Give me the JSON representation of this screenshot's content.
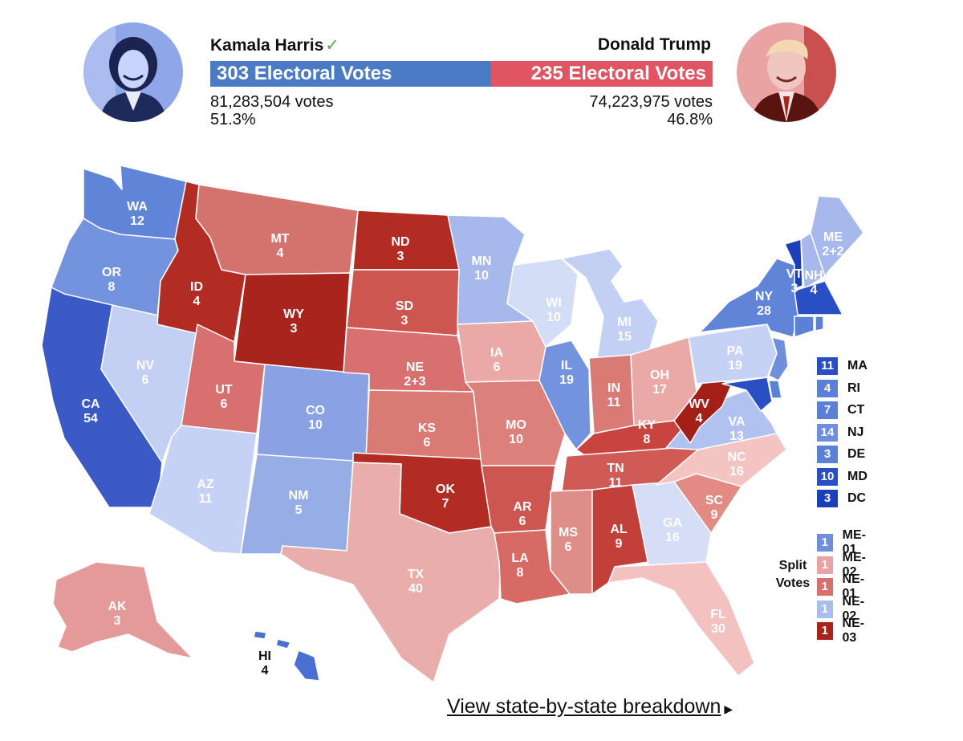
{
  "harris": {
    "name": "Kamala Harris",
    "check": "✓",
    "electoral": "303 Electoral Votes",
    "votes": "81,283,504 votes",
    "percent": "51.3%",
    "color": "#4a7bc4"
  },
  "trump": {
    "name": "Donald Trump",
    "electoral": "235 Electoral Votes",
    "votes": "74,223,975 votes",
    "percent": "46.8%",
    "color": "#e05561"
  },
  "states": [
    {
      "abbr": "WA",
      "ev": "12"
    },
    {
      "abbr": "OR",
      "ev": "8"
    },
    {
      "abbr": "CA",
      "ev": "54"
    },
    {
      "abbr": "NV",
      "ev": "6"
    },
    {
      "abbr": "ID",
      "ev": "4"
    },
    {
      "abbr": "MT",
      "ev": "4"
    },
    {
      "abbr": "WY",
      "ev": "3"
    },
    {
      "abbr": "UT",
      "ev": "6"
    },
    {
      "abbr": "AZ",
      "ev": "11"
    },
    {
      "abbr": "CO",
      "ev": "10"
    },
    {
      "abbr": "NM",
      "ev": "5"
    },
    {
      "abbr": "ND",
      "ev": "3"
    },
    {
      "abbr": "SD",
      "ev": "3"
    },
    {
      "abbr": "NE",
      "ev": "2+3"
    },
    {
      "abbr": "KS",
      "ev": "6"
    },
    {
      "abbr": "OK",
      "ev": "7"
    },
    {
      "abbr": "TX",
      "ev": "40"
    },
    {
      "abbr": "MN",
      "ev": "10"
    },
    {
      "abbr": "IA",
      "ev": "6"
    },
    {
      "abbr": "MO",
      "ev": "10"
    },
    {
      "abbr": "AR",
      "ev": "6"
    },
    {
      "abbr": "LA",
      "ev": "8"
    },
    {
      "abbr": "WI",
      "ev": "10"
    },
    {
      "abbr": "IL",
      "ev": "19"
    },
    {
      "abbr": "MI",
      "ev": "15"
    },
    {
      "abbr": "IN",
      "ev": "11"
    },
    {
      "abbr": "OH",
      "ev": "17"
    },
    {
      "abbr": "KY",
      "ev": "8"
    },
    {
      "abbr": "TN",
      "ev": "11"
    },
    {
      "abbr": "MS",
      "ev": "6"
    },
    {
      "abbr": "AL",
      "ev": "9"
    },
    {
      "abbr": "GA",
      "ev": "16"
    },
    {
      "abbr": "FL",
      "ev": "30"
    },
    {
      "abbr": "SC",
      "ev": "9"
    },
    {
      "abbr": "NC",
      "ev": "16"
    },
    {
      "abbr": "VA",
      "ev": "13"
    },
    {
      "abbr": "WV",
      "ev": "4"
    },
    {
      "abbr": "PA",
      "ev": "19"
    },
    {
      "abbr": "NY",
      "ev": "28"
    },
    {
      "abbr": "VT",
      "ev": "3"
    },
    {
      "abbr": "NH",
      "ev": "4"
    },
    {
      "abbr": "ME",
      "ev": "2+2"
    },
    {
      "abbr": "AK",
      "ev": "3"
    },
    {
      "abbr": "HI",
      "ev": "4"
    }
  ],
  "small_states": [
    {
      "ev": "11",
      "abbr": "MA",
      "color": "#2a4fc4"
    },
    {
      "ev": "4",
      "abbr": "RI",
      "color": "#5a80d8"
    },
    {
      "ev": "7",
      "abbr": "CT",
      "color": "#5a80d8"
    },
    {
      "ev": "14",
      "abbr": "NJ",
      "color": "#6f8fdc"
    },
    {
      "ev": "3",
      "abbr": "DE",
      "color": "#5a80d8"
    },
    {
      "ev": "10",
      "abbr": "MD",
      "color": "#2a4fc4"
    },
    {
      "ev": "3",
      "abbr": "DC",
      "color": "#1a3fb8"
    }
  ],
  "split_votes_label": "Split Votes",
  "split_votes": [
    {
      "ev": "1",
      "abbr": "ME-01",
      "color": "#6f8fdc"
    },
    {
      "ev": "1",
      "abbr": "ME-02",
      "color": "#e9a3a3"
    },
    {
      "ev": "1",
      "abbr": "NE-01",
      "color": "#d97070"
    },
    {
      "ev": "1",
      "abbr": "NE-02",
      "color": "#aabeee"
    },
    {
      "ev": "1",
      "abbr": "NE-03",
      "color": "#a8241c"
    }
  ],
  "breakdown_link": "View state-by-state breakdown"
}
